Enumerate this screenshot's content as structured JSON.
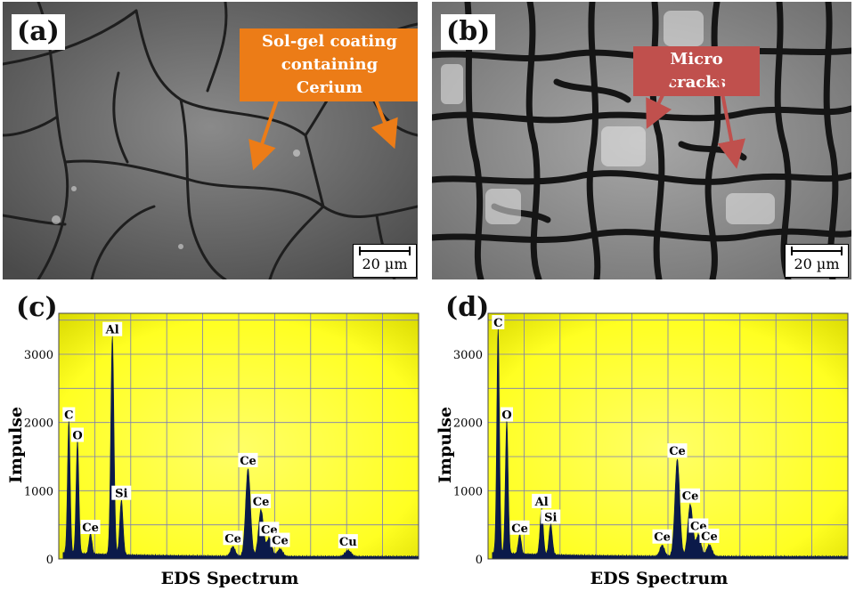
{
  "panels": {
    "a": {
      "label": "(a)",
      "scale": "20 µm",
      "callout": [
        "Sol-gel coating",
        "containing Cerium"
      ]
    },
    "b": {
      "label": "(b)",
      "scale": "20 µm",
      "callout": [
        "Micro cracks"
      ]
    },
    "c": {
      "label": "(c)"
    },
    "d": {
      "label": "(d)"
    }
  },
  "colors": {
    "orange": "#ec7c17",
    "red": "#c0504d",
    "spectrum": "#0b1a4a",
    "plot_bg": "#ffff33"
  },
  "chart_data": [
    {
      "type": "area",
      "title": "",
      "xlabel": "EDS Spectrum",
      "ylabel": "Impulse",
      "ylim": [
        0,
        3600
      ],
      "yticks": [
        0,
        1000,
        2000,
        3000
      ],
      "grid": true,
      "peaks": [
        {
          "label": "C",
          "x": 0.28,
          "value": 1950
        },
        {
          "label": "O",
          "x": 0.52,
          "value": 1650
        },
        {
          "label": "Ce",
          "x": 0.88,
          "value": 300
        },
        {
          "label": "Al",
          "x": 1.49,
          "value": 3200
        },
        {
          "label": "Si",
          "x": 1.74,
          "value": 800
        },
        {
          "label": "Ce",
          "x": 4.84,
          "value": 140
        },
        {
          "label": "Ce",
          "x": 5.26,
          "value": 1280
        },
        {
          "label": "Ce",
          "x": 5.62,
          "value": 680
        },
        {
          "label": "Ce",
          "x": 5.85,
          "value": 270
        },
        {
          "label": "Ce",
          "x": 6.15,
          "value": 110
        },
        {
          "label": "Cu",
          "x": 8.04,
          "value": 90
        }
      ]
    },
    {
      "type": "area",
      "title": "",
      "xlabel": "EDS Spectrum",
      "ylabel": "Impulse",
      "ylim": [
        0,
        3600
      ],
      "yticks": [
        0,
        1000,
        2000,
        3000
      ],
      "grid": true,
      "peaks": [
        {
          "label": "C",
          "x": 0.28,
          "value": 3300
        },
        {
          "label": "O",
          "x": 0.52,
          "value": 1950
        },
        {
          "label": "Ce",
          "x": 0.88,
          "value": 290
        },
        {
          "label": "Al",
          "x": 1.49,
          "value": 680
        },
        {
          "label": "Si",
          "x": 1.74,
          "value": 450
        },
        {
          "label": "Ce",
          "x": 4.84,
          "value": 160
        },
        {
          "label": "Ce",
          "x": 5.26,
          "value": 1420
        },
        {
          "label": "Ce",
          "x": 5.62,
          "value": 760
        },
        {
          "label": "Ce",
          "x": 5.85,
          "value": 320
        },
        {
          "label": "Ce",
          "x": 6.15,
          "value": 170
        }
      ]
    }
  ]
}
